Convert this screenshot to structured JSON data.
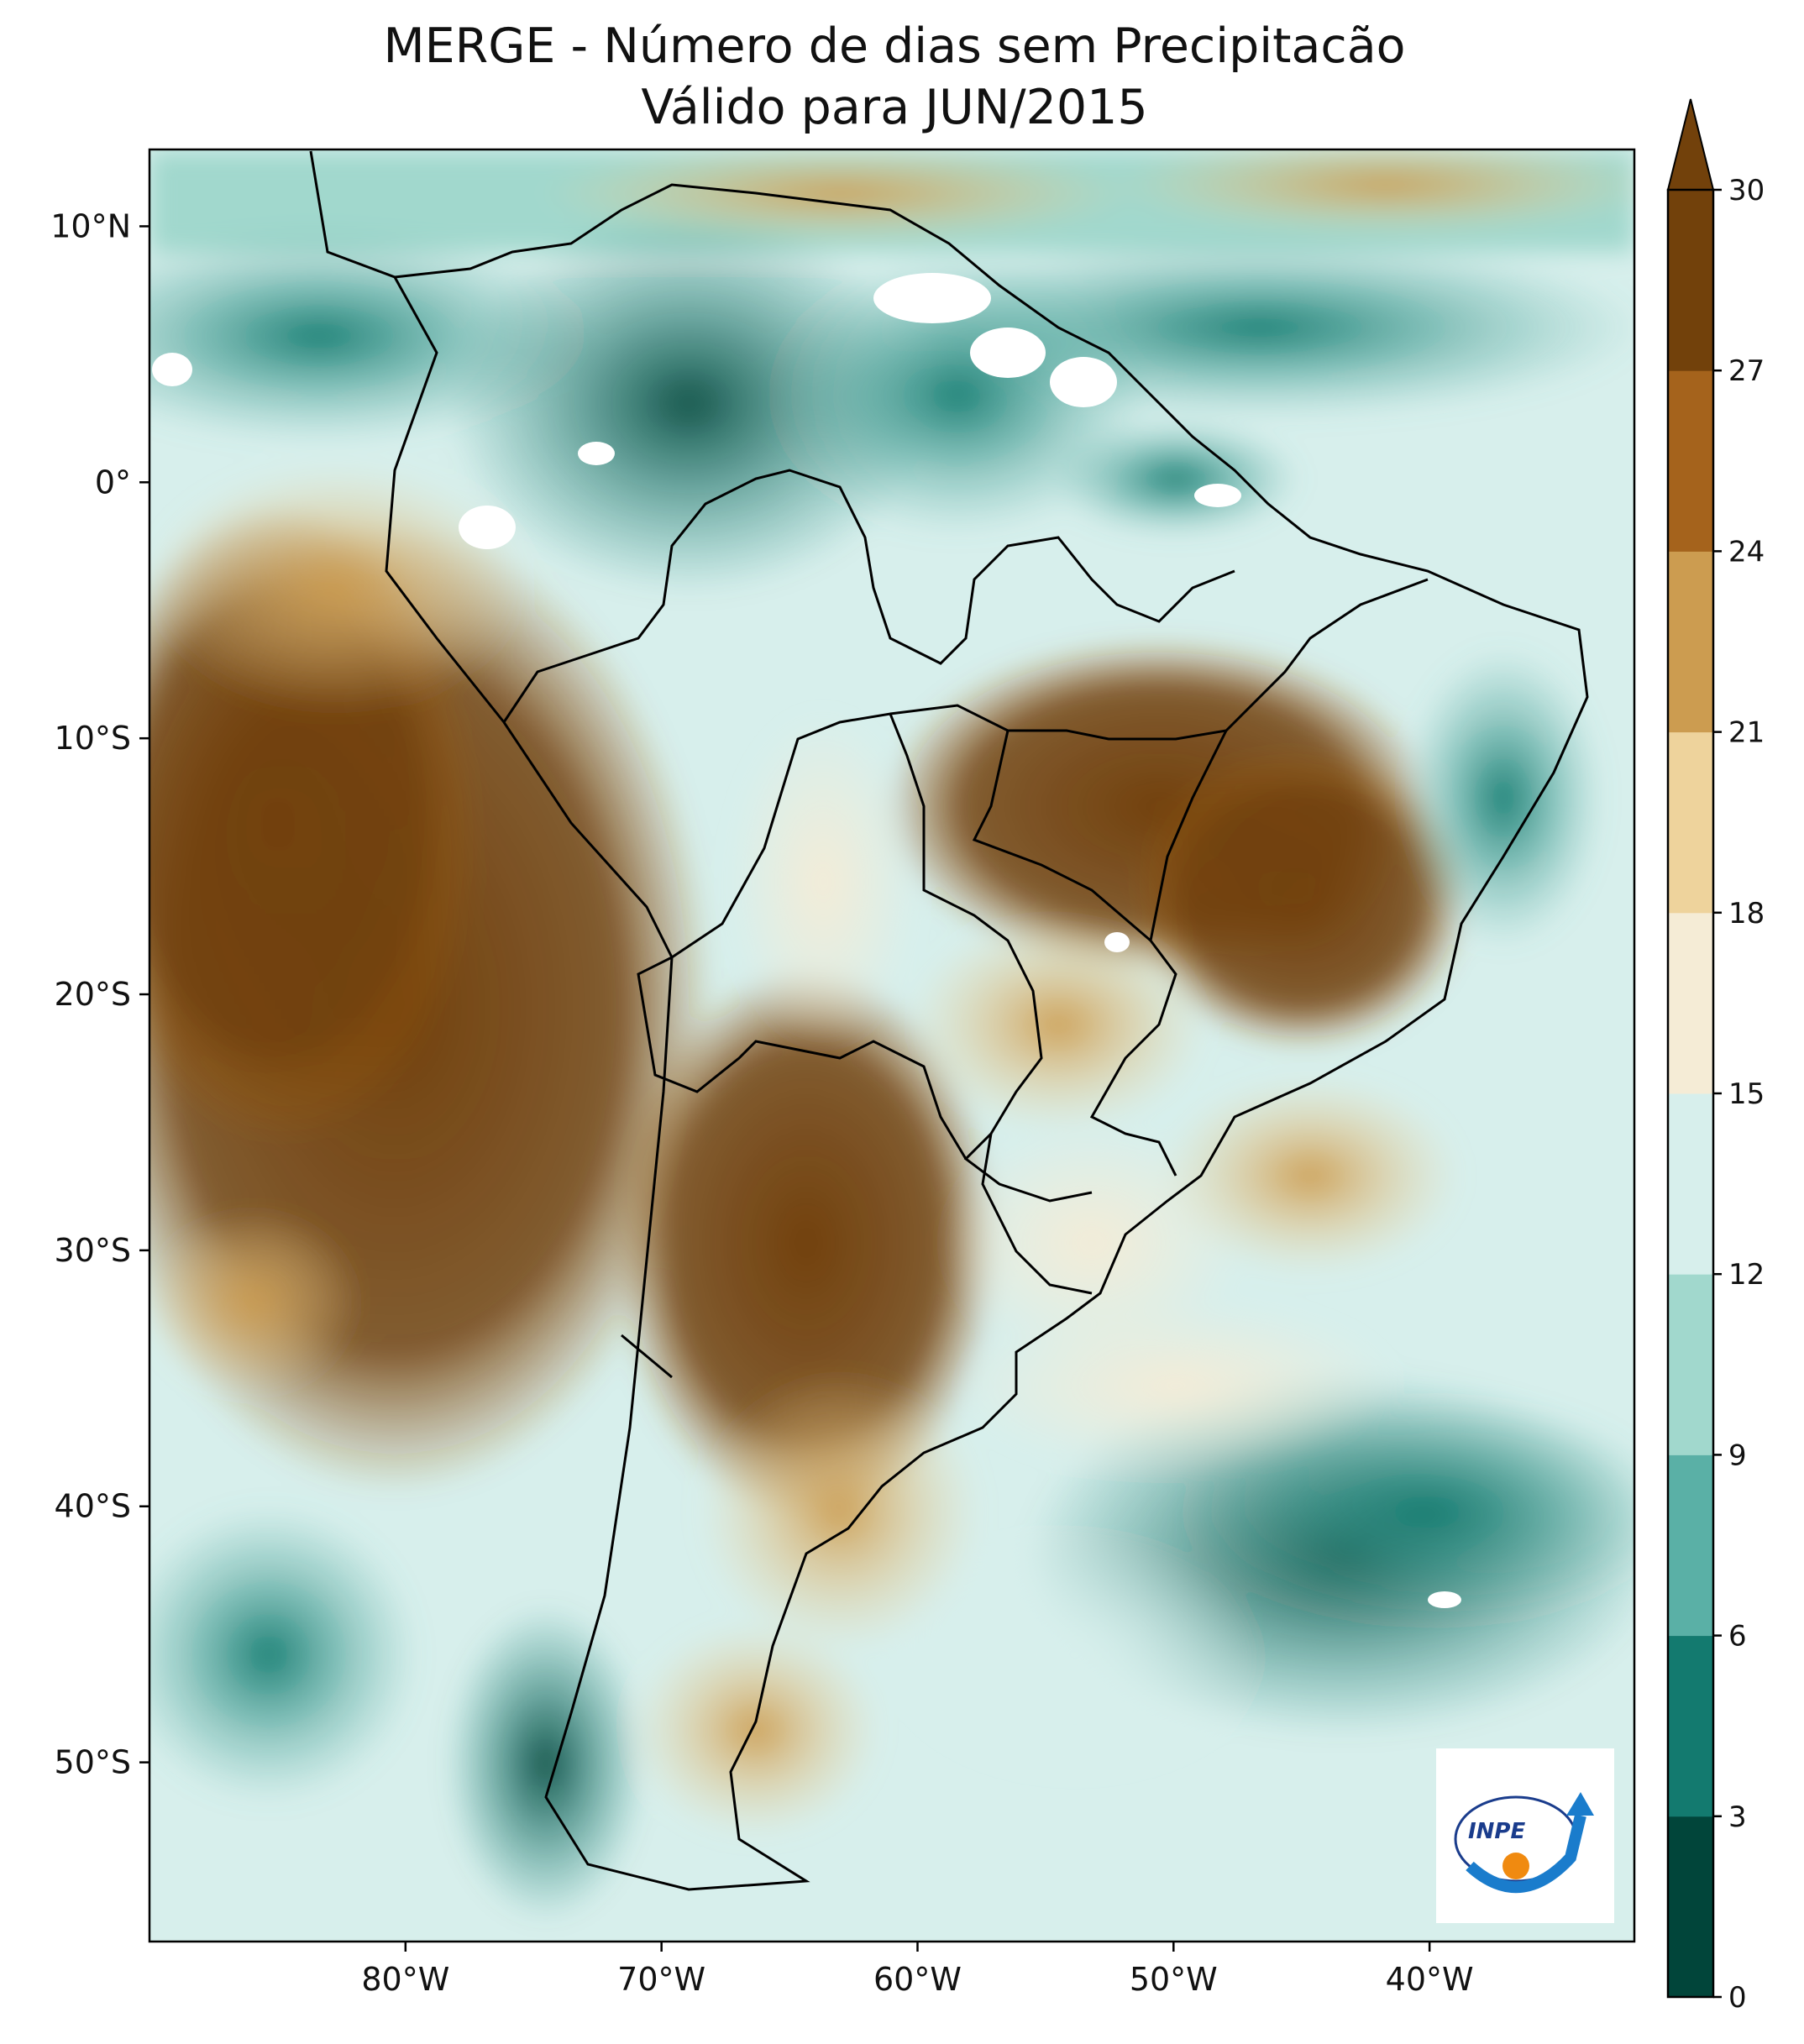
{
  "title": {
    "line1": "MERGE - Número de dias sem Precipitacão",
    "line2": "Válido para JUN/2015"
  },
  "map": {
    "lat_ticks": [
      "10°N",
      "0°",
      "10°S",
      "20°S",
      "30°S",
      "40°S",
      "50°S"
    ],
    "lon_ticks": [
      "80°W",
      "70°W",
      "60°W",
      "50°W",
      "40°W"
    ],
    "extent": {
      "lon_min": -90,
      "lon_max": -32,
      "lat_min": -57,
      "lat_max": 13
    }
  },
  "colorbar": {
    "ticks": [
      "0",
      "3",
      "6",
      "9",
      "12",
      "15",
      "18",
      "21",
      "24",
      "27",
      "30"
    ],
    "colors": [
      "#01453a",
      "#137a6f",
      "#5ab0a6",
      "#a1d8cd",
      "#d7efec",
      "#f5ecd6",
      "#eed39c",
      "#cc9c50",
      "#a5631c",
      "#72410b"
    ],
    "extend": "max"
  },
  "logo": {
    "text": "INPE"
  }
}
